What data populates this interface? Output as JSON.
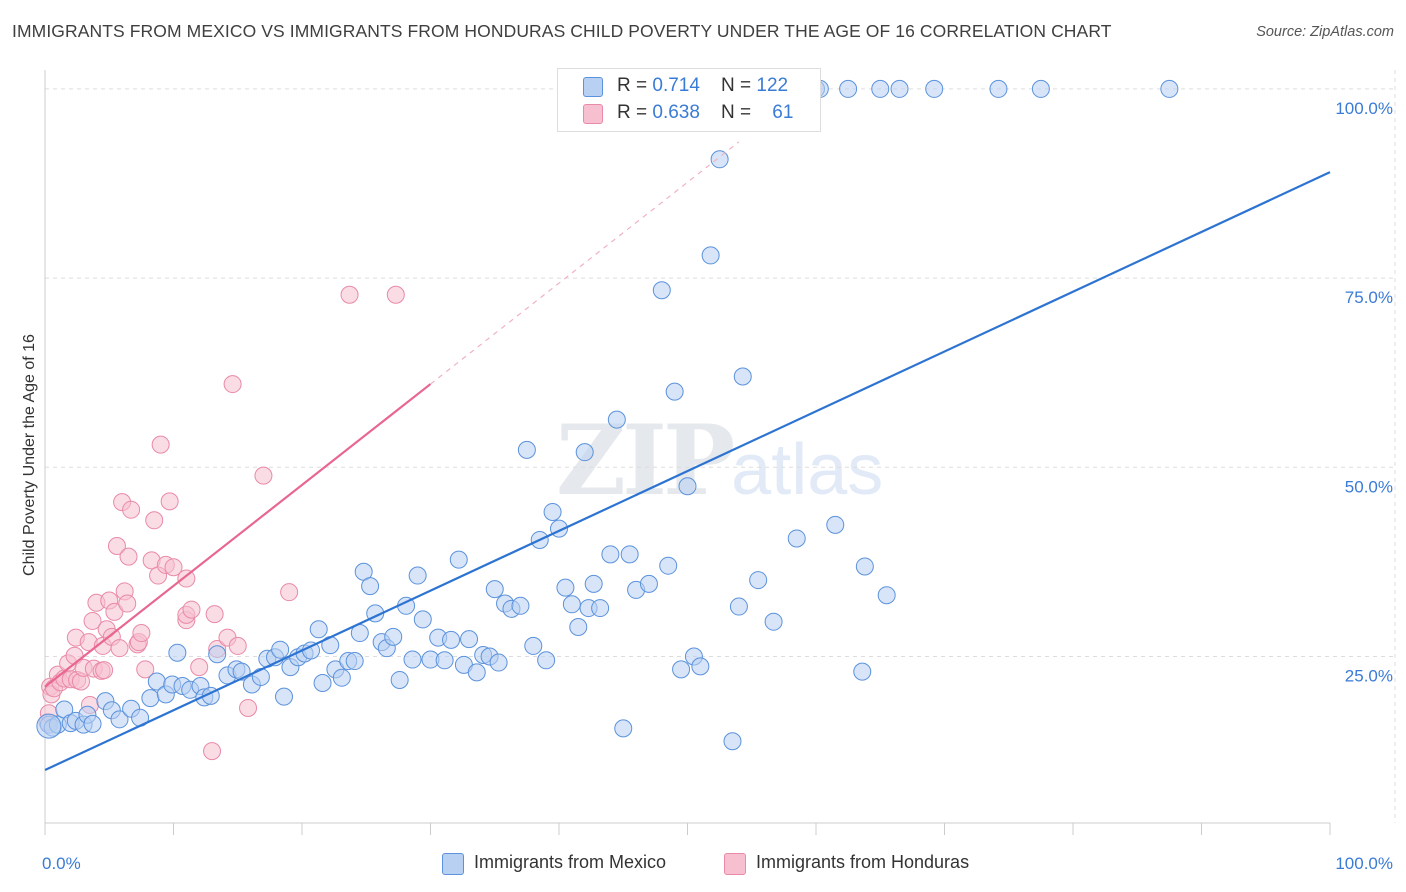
{
  "title": "IMMIGRANTS FROM MEXICO VS IMMIGRANTS FROM HONDURAS CHILD POVERTY UNDER THE AGE OF 16 CORRELATION CHART",
  "source": "Source: ZipAtlas.com",
  "watermark": {
    "zip": "ZIP",
    "atlas": "atlas"
  },
  "legend": {
    "mexico": {
      "r_label": "R = ",
      "r_value": "0.714",
      "n_label": "N = ",
      "n_value": "122"
    },
    "honduras": {
      "r_label": "R = ",
      "r_value": "0.638",
      "n_label": "N = ",
      "n_value": "61"
    }
  },
  "colors": {
    "mexico_fill": "#b8d0f2",
    "mexico_stroke": "#5b92dc",
    "mexico_line": "#2d74d2",
    "honduras_fill": "#f6c0d0",
    "honduras_stroke": "#e98aa8",
    "honduras_line": "#e8668f",
    "axis_label": "#3a7bd5",
    "grid": "#dddddd"
  },
  "chart_data": {
    "type": "scatter",
    "title": "IMMIGRANTS FROM MEXICO VS IMMIGRANTS FROM HONDURAS CHILD POVERTY UNDER THE AGE OF 16 CORRELATION CHART",
    "xlabel": "",
    "ylabel": "Child Poverty Under the Age of 16",
    "xlim": [
      0,
      100
    ],
    "ylim": [
      3,
      102.5
    ],
    "x_tick_labels": [
      "0.0%",
      "100.0%"
    ],
    "y_ticks": [
      25,
      50,
      75,
      100
    ],
    "y_tick_labels": [
      "25.0%",
      "50.0%",
      "75.0%",
      "100.0%"
    ],
    "series": [
      {
        "name": "Immigrants from Mexico",
        "trend": {
          "x": [
            0,
            100
          ],
          "y": [
            10,
            89
          ]
        },
        "points": [
          [
            0.3,
            16.0
          ],
          [
            0.6,
            15.6
          ],
          [
            1.0,
            16.0
          ],
          [
            1.5,
            18.0
          ],
          [
            2.0,
            16.2
          ],
          [
            2.4,
            16.5
          ],
          [
            3.0,
            16.0
          ],
          [
            3.3,
            17.3
          ],
          [
            3.7,
            16.1
          ],
          [
            4.7,
            19.1
          ],
          [
            5.2,
            17.9
          ],
          [
            5.8,
            16.7
          ],
          [
            6.7,
            18.1
          ],
          [
            7.4,
            16.9
          ],
          [
            8.2,
            19.5
          ],
          [
            8.7,
            21.7
          ],
          [
            9.4,
            20.0
          ],
          [
            9.9,
            21.3
          ],
          [
            10.3,
            25.5
          ],
          [
            10.7,
            21.1
          ],
          [
            11.3,
            20.6
          ],
          [
            12.1,
            21.1
          ],
          [
            12.4,
            19.6
          ],
          [
            12.9,
            19.8
          ],
          [
            13.4,
            25.3
          ],
          [
            14.2,
            22.5
          ],
          [
            14.9,
            23.3
          ],
          [
            15.3,
            23.0
          ],
          [
            16.1,
            21.3
          ],
          [
            16.8,
            22.3
          ],
          [
            17.3,
            24.7
          ],
          [
            17.9,
            24.9
          ],
          [
            18.3,
            25.9
          ],
          [
            18.6,
            19.7
          ],
          [
            19.1,
            23.6
          ],
          [
            19.7,
            24.9
          ],
          [
            20.2,
            25.4
          ],
          [
            20.7,
            25.8
          ],
          [
            21.3,
            28.6
          ],
          [
            21.6,
            21.5
          ],
          [
            22.2,
            26.5
          ],
          [
            22.6,
            23.3
          ],
          [
            23.1,
            22.2
          ],
          [
            23.6,
            24.4
          ],
          [
            24.1,
            24.4
          ],
          [
            24.5,
            28.1
          ],
          [
            24.8,
            36.2
          ],
          [
            25.3,
            34.3
          ],
          [
            25.7,
            30.7
          ],
          [
            26.2,
            26.9
          ],
          [
            26.6,
            26.1
          ],
          [
            27.1,
            27.6
          ],
          [
            27.6,
            21.9
          ],
          [
            28.1,
            31.7
          ],
          [
            28.6,
            24.6
          ],
          [
            29.0,
            35.7
          ],
          [
            29.4,
            29.9
          ],
          [
            30.0,
            24.6
          ],
          [
            30.6,
            27.5
          ],
          [
            31.1,
            24.5
          ],
          [
            31.6,
            27.2
          ],
          [
            32.2,
            37.8
          ],
          [
            32.6,
            23.9
          ],
          [
            33.0,
            27.3
          ],
          [
            33.6,
            22.9
          ],
          [
            34.1,
            25.2
          ],
          [
            34.6,
            25.0
          ],
          [
            35.0,
            33.9
          ],
          [
            35.3,
            24.2
          ],
          [
            35.8,
            32.0
          ],
          [
            36.3,
            31.3
          ],
          [
            37.0,
            31.7
          ],
          [
            37.5,
            52.3
          ],
          [
            38.0,
            26.4
          ],
          [
            38.5,
            40.4
          ],
          [
            39.0,
            24.5
          ],
          [
            39.5,
            44.1
          ],
          [
            40.0,
            41.9
          ],
          [
            40.5,
            34.1
          ],
          [
            41.0,
            31.9
          ],
          [
            41.5,
            28.9
          ],
          [
            42.0,
            52.0
          ],
          [
            42.3,
            31.4
          ],
          [
            42.7,
            34.6
          ],
          [
            43.2,
            31.4
          ],
          [
            44.0,
            38.5
          ],
          [
            44.5,
            56.3
          ],
          [
            45.0,
            15.5
          ],
          [
            45.5,
            38.5
          ],
          [
            46.0,
            33.8
          ],
          [
            47.0,
            34.6
          ],
          [
            48.0,
            73.4
          ],
          [
            48.5,
            37.0
          ],
          [
            49.0,
            60.0
          ],
          [
            49.5,
            23.3
          ],
          [
            50.0,
            47.5
          ],
          [
            50.5,
            25.0
          ],
          [
            51.0,
            23.7
          ],
          [
            51.8,
            78.0
          ],
          [
            52.5,
            90.7
          ],
          [
            53.5,
            13.8
          ],
          [
            54.0,
            31.6
          ],
          [
            54.3,
            62.0
          ],
          [
            55.5,
            35.1
          ],
          [
            56.7,
            29.6
          ],
          [
            58.5,
            40.6
          ],
          [
            60.0,
            100.0
          ],
          [
            60.3,
            100.0
          ],
          [
            61.5,
            42.4
          ],
          [
            62.5,
            100.0
          ],
          [
            63.6,
            23.0
          ],
          [
            63.8,
            36.9
          ],
          [
            65.0,
            100.0
          ],
          [
            65.5,
            33.1
          ],
          [
            66.5,
            100.0
          ],
          [
            69.2,
            100.0
          ],
          [
            74.2,
            100.0
          ],
          [
            77.5,
            100.0
          ],
          [
            87.5,
            100.0
          ]
        ]
      },
      {
        "name": "Immigrants from Honduras",
        "trend": {
          "x": [
            0,
            30
          ],
          "y": [
            21,
            61
          ]
        },
        "trend_extension": {
          "x": [
            30,
            54
          ],
          "y": [
            61,
            93
          ]
        },
        "points": [
          [
            0.2,
            16.3
          ],
          [
            0.3,
            17.5
          ],
          [
            0.4,
            21.0
          ],
          [
            0.5,
            20.0
          ],
          [
            0.7,
            20.8
          ],
          [
            1.0,
            22.6
          ],
          [
            1.2,
            21.6
          ],
          [
            1.5,
            22.1
          ],
          [
            1.8,
            24.1
          ],
          [
            2.0,
            22.0
          ],
          [
            2.3,
            25.1
          ],
          [
            2.5,
            21.9
          ],
          [
            2.8,
            21.7
          ],
          [
            2.4,
            27.5
          ],
          [
            3.0,
            23.5
          ],
          [
            3.4,
            26.9
          ],
          [
            3.5,
            18.6
          ],
          [
            3.7,
            29.7
          ],
          [
            3.8,
            23.4
          ],
          [
            4.0,
            32.1
          ],
          [
            4.4,
            23.1
          ],
          [
            4.5,
            26.4
          ],
          [
            4.6,
            23.2
          ],
          [
            4.8,
            28.6
          ],
          [
            5.0,
            32.4
          ],
          [
            5.2,
            27.6
          ],
          [
            5.4,
            30.9
          ],
          [
            5.6,
            39.6
          ],
          [
            5.8,
            26.1
          ],
          [
            6.0,
            45.4
          ],
          [
            6.2,
            33.6
          ],
          [
            6.4,
            32.0
          ],
          [
            6.5,
            38.2
          ],
          [
            6.7,
            44.4
          ],
          [
            7.2,
            26.6
          ],
          [
            7.3,
            26.9
          ],
          [
            7.5,
            28.1
          ],
          [
            7.8,
            23.3
          ],
          [
            8.3,
            37.7
          ],
          [
            8.5,
            43.0
          ],
          [
            8.8,
            35.7
          ],
          [
            9.0,
            53.0
          ],
          [
            9.4,
            37.1
          ],
          [
            9.7,
            45.5
          ],
          [
            10.0,
            36.8
          ],
          [
            11.0,
            35.3
          ],
          [
            11.0,
            29.8
          ],
          [
            11.0,
            30.5
          ],
          [
            11.4,
            31.2
          ],
          [
            12.0,
            23.6
          ],
          [
            13.0,
            12.5
          ],
          [
            13.2,
            30.6
          ],
          [
            13.4,
            26.0
          ],
          [
            14.2,
            27.5
          ],
          [
            14.6,
            61.0
          ],
          [
            15.0,
            26.4
          ],
          [
            15.8,
            18.2
          ],
          [
            17.0,
            48.9
          ],
          [
            19.0,
            33.5
          ],
          [
            23.7,
            72.8
          ],
          [
            27.3,
            72.8
          ]
        ]
      }
    ]
  },
  "bottom_legend": {
    "mexico": "Immigrants from Mexico",
    "honduras": "Immigrants from Honduras"
  }
}
